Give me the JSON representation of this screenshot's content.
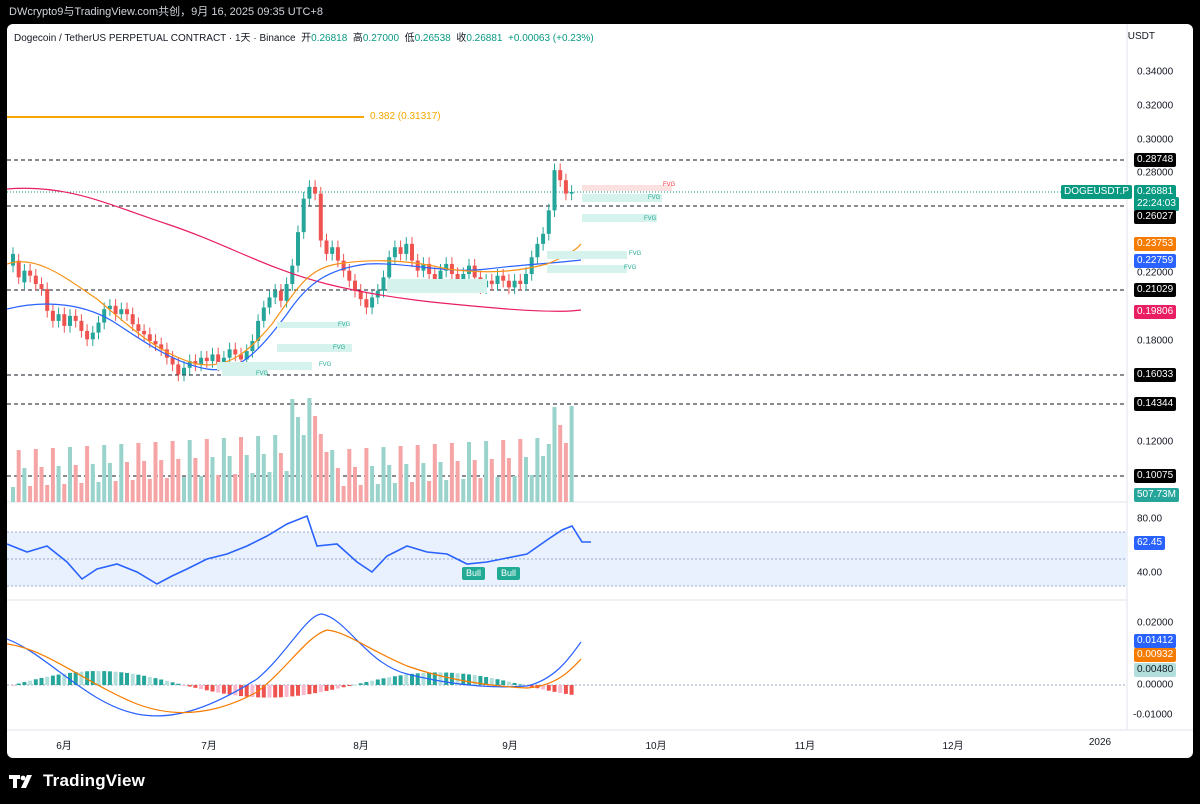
{
  "header": {
    "text": "DWcrypto9与TradingView.com共创，9月 16, 2025 09:35 UTC+8"
  },
  "legend": {
    "symbol": "Dogecoin / TetherUS PERPETUAL CONTRACT · 1天 · Binance",
    "open_label": "开",
    "open": "0.26818",
    "high_label": "高",
    "high": "0.27000",
    "low_label": "低",
    "low": "0.26538",
    "close_label": "收",
    "close": "0.26881",
    "change": "+0.00063 (+0.23%)"
  },
  "axis": {
    "unit": "USDT",
    "price_ticks": [
      "0.34000",
      "0.32000",
      "0.30000",
      "0.28000",
      "0.22000",
      "0.18000",
      "0.14000",
      "0.12000",
      "0.00000",
      "0.02000",
      "-0.01000"
    ],
    "rsi_ticks": [
      "80.00",
      "40.00"
    ],
    "time_labels": [
      "6月",
      "7月",
      "8月",
      "9月",
      "10月",
      "11月",
      "12月",
      "2026"
    ]
  },
  "price_tags": {
    "symbol_tag": "DOGEUSDT.P",
    "last": "0.26881",
    "countdown": "22:24:03",
    "level1": "0.28748",
    "level2": "0.26027",
    "ema_orange": "0.23753",
    "ema_blue": "0.22759",
    "level3": "0.21029",
    "ema_red": "0.19806",
    "level4": "0.16033",
    "level5": "0.14344",
    "level6": "0.10075",
    "volume": "507.73M",
    "rsi": "62.45",
    "macd": "0.01412",
    "signal": "0.00932",
    "hist": "0.00480"
  },
  "fib": {
    "label": "0.382 (0.31317)"
  },
  "annotations": {
    "fvg": "FVG",
    "bull": "Bull"
  },
  "brand": {
    "name": "TradingView"
  },
  "colors": {
    "up": "#26a69a",
    "down": "#ef5350",
    "fib": "#f7a600",
    "ema_orange": "#f7931a",
    "ema_blue": "#2962ff",
    "ema_red": "#e91e63",
    "rsi_line": "#2962ff",
    "macd_line": "#2962ff",
    "signal_line": "#f57c00"
  }
}
